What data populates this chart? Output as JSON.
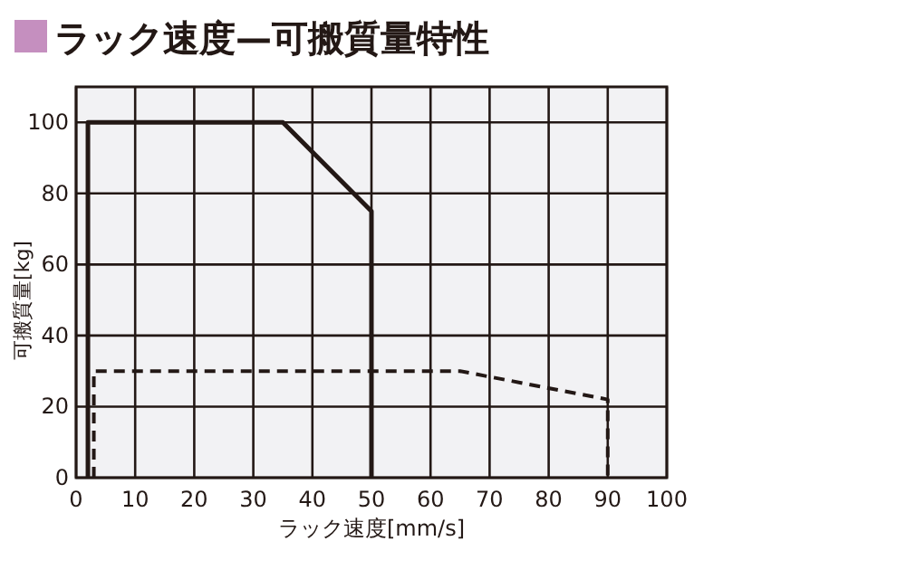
{
  "chart_data": {
    "type": "line",
    "title": "ラック速度—可搬質量特性",
    "xlabel": "ラック速度[mm/s]",
    "ylabel": "可搬質量[kg]",
    "xlim": [
      0,
      100
    ],
    "ylim": [
      0,
      110
    ],
    "xticks": [
      0,
      10,
      20,
      30,
      40,
      50,
      60,
      70,
      80,
      90,
      100
    ],
    "yticks": [
      0,
      20,
      40,
      60,
      80,
      100
    ],
    "grid": true,
    "series": [
      {
        "color": "#231815",
        "line_style": "solid",
        "x": [
          2,
          2,
          35,
          50,
          50
        ],
        "values": [
          0,
          100,
          100,
          75,
          0
        ]
      },
      {
        "color": "#231815",
        "line_style": "dashed",
        "x": [
          3,
          3,
          65,
          90,
          90
        ],
        "values": [
          0,
          30,
          30,
          22,
          0
        ]
      }
    ]
  }
}
